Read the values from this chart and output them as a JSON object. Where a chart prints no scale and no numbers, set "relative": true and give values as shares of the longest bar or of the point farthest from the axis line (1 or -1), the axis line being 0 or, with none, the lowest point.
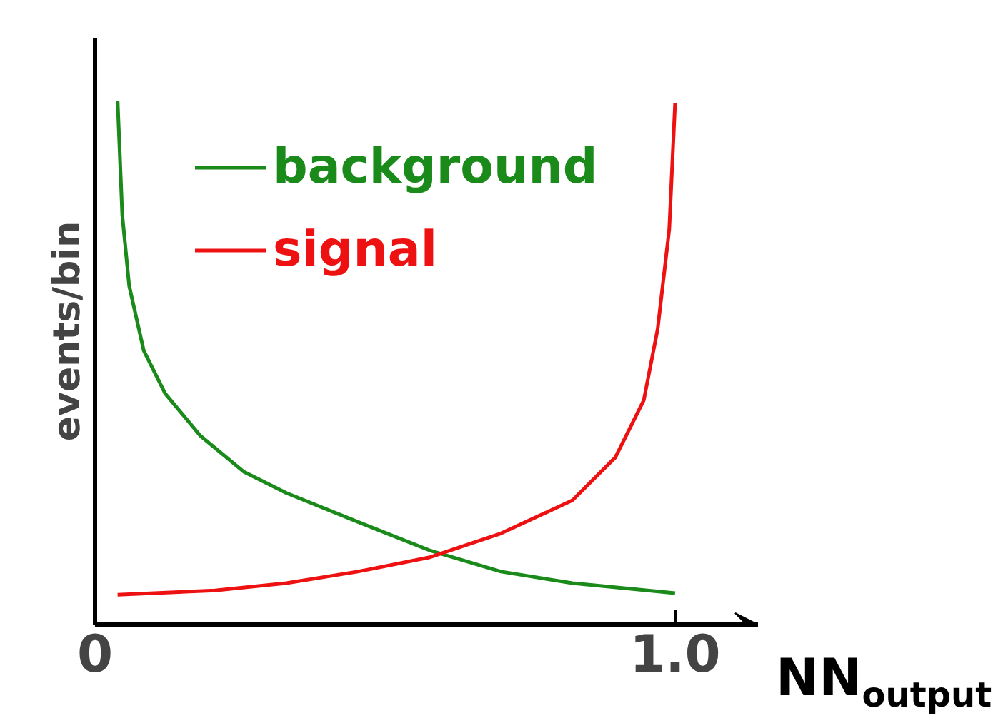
{
  "chart_data": {
    "type": "line",
    "relative": true,
    "xlabel": "NN$_{output}$",
    "ylabel": "events/bin",
    "xlim": [
      0,
      1.143
    ],
    "xticks": [
      0,
      {
        "value": 1.0,
        "label": "1.0"
      }
    ],
    "legend": "top",
    "grid": false,
    "marker": "none",
    "line_style": "solid",
    "series": [
      {
        "name": "background",
        "color": "#1a8a1a",
        "x": [
          0.039,
          0.047,
          0.059,
          0.084,
          0.121,
          0.182,
          0.256,
          0.33,
          0.453,
          0.576,
          0.7,
          0.823,
          1.0
        ],
        "values": [
          1.0,
          0.782,
          0.646,
          0.523,
          0.441,
          0.36,
          0.292,
          0.251,
          0.196,
          0.142,
          0.101,
          0.079,
          0.06
        ]
      },
      {
        "name": "signal",
        "color": "#ee1111",
        "x": [
          0.039,
          0.207,
          0.33,
          0.453,
          0.576,
          0.7,
          0.823,
          0.897,
          0.946,
          0.97,
          0.99,
          1.0
        ],
        "values": [
          0.057,
          0.065,
          0.079,
          0.101,
          0.128,
          0.174,
          0.237,
          0.319,
          0.428,
          0.564,
          0.755,
          0.995
        ]
      }
    ]
  }
}
